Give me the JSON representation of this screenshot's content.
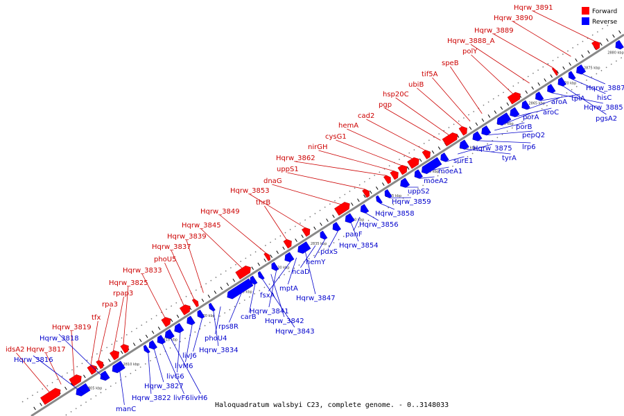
{
  "caption": "Haloquadratum walsbyi C23, complete genome. - 0..3148033",
  "legend": [
    {
      "label": "Forward",
      "color": "#ff0000"
    },
    {
      "label": "Reverse",
      "color": "#0000ff"
    }
  ],
  "colors": {
    "forward": "#ff0000",
    "reverse": "#0000ff",
    "forward_label": "#cc0000",
    "reverse_label": "#0000cc",
    "backbone": "#888888"
  },
  "scale_labels": [
    "2805 kbp",
    "2810 kbp",
    "2815 kbp",
    "2820 kbp",
    "2825 kbp",
    "2830 kbp",
    "2835 kbp",
    "2840 kbp",
    "2845 kbp",
    "2850 kbp",
    "2855 kbp",
    "2860 kbp",
    "2865 kbp",
    "2870 kbp",
    "2875 kbp",
    "2880 kbp"
  ],
  "forward_labels": [
    "idsA2",
    "Hqrw_3817",
    "Hqrw_3819",
    "tfx",
    "rpa3",
    "rpap3",
    "Hqrw_3825",
    "Hqrw_3833",
    "phoU5",
    "Hqrw_3837",
    "Hqrw_3839",
    "Hqrw_3845",
    "Hqrw_3849",
    "thrB",
    "Hqrw_3853",
    "dnaG",
    "uppS1",
    "Hqrw_3862",
    "nirGH",
    "cysG1",
    "hemA",
    "cad2",
    "pgp",
    "hsp20C",
    "ubiB",
    "tif5A",
    "speB",
    "polY",
    "Hqrw_3888_A",
    "Hqrw_3889",
    "Hqrw_3890",
    "Hqrw_3891"
  ],
  "reverse_labels": [
    "Hqrw_3816",
    "Hqrw_3818",
    "manC",
    "Hqrw_3822",
    "Hqrw_3827",
    "livF6",
    "livH6",
    "livG6",
    "livM6",
    "livJ6",
    "Hqrw_3834",
    "phoU4",
    "rps8R",
    "carB",
    "Hqrw_3843",
    "Hqrw_3842",
    "Hqrw_3841",
    "fsxA",
    "mptA",
    "Hqrw_3847",
    "hcaD",
    "hemY",
    "pdxS",
    "Hqrw_3854",
    "panF",
    "Hqrw_3856",
    "Hqrw_3858",
    "Hqrw_3859",
    "uppS2",
    "moeA2",
    "moeA1",
    "surE1",
    "Hqrw_3875",
    "tyrA",
    "lrp6",
    "pepQ2",
    "porB",
    "porA",
    "aroC",
    "aroA",
    "tpiA",
    "Hqrw_3885",
    "pgsA2",
    "hisC",
    "Hqrw_3887"
  ]
}
